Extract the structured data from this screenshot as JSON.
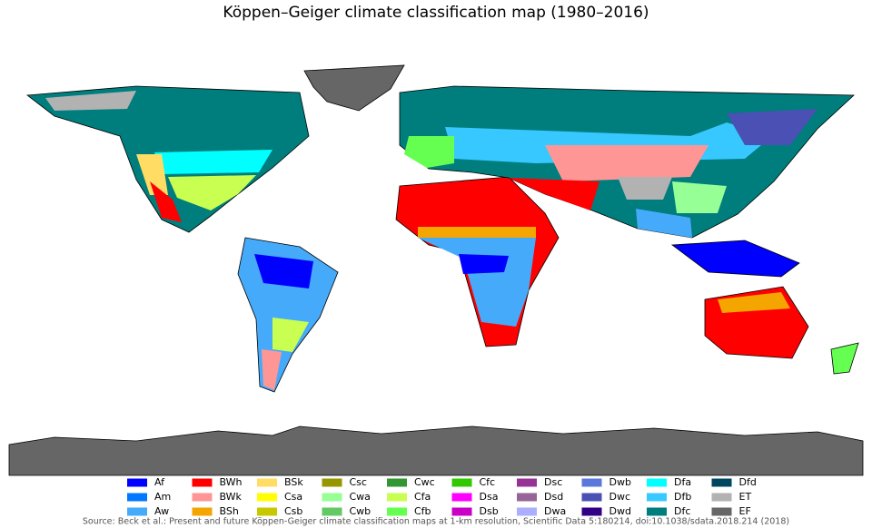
{
  "title": "Köppen–Geiger climate classification map (1980–2016)",
  "legend": [
    {
      "code": "Af",
      "color": "#0000ff"
    },
    {
      "code": "Am",
      "color": "#0078ff"
    },
    {
      "code": "Aw",
      "color": "#46aafa"
    },
    {
      "code": "BWh",
      "color": "#ff0000"
    },
    {
      "code": "BWk",
      "color": "#ff9696"
    },
    {
      "code": "BSh",
      "color": "#f5a500"
    },
    {
      "code": "BSk",
      "color": "#ffdc64"
    },
    {
      "code": "Csa",
      "color": "#ffff00"
    },
    {
      "code": "Csb",
      "color": "#c8c800"
    },
    {
      "code": "Csc",
      "color": "#969600"
    },
    {
      "code": "Cwa",
      "color": "#96ff96"
    },
    {
      "code": "Cwb",
      "color": "#64c864"
    },
    {
      "code": "Cwc",
      "color": "#329632"
    },
    {
      "code": "Cfa",
      "color": "#c8ff50"
    },
    {
      "code": "Cfb",
      "color": "#64ff50"
    },
    {
      "code": "Cfc",
      "color": "#32c800"
    },
    {
      "code": "Dsa",
      "color": "#ff00ff"
    },
    {
      "code": "Dsb",
      "color": "#c800c8"
    },
    {
      "code": "Dsc",
      "color": "#963296"
    },
    {
      "code": "Dsd",
      "color": "#966496"
    },
    {
      "code": "Dwa",
      "color": "#aaafff"
    },
    {
      "code": "Dwb",
      "color": "#5a78dc"
    },
    {
      "code": "Dwc",
      "color": "#4b50b4"
    },
    {
      "code": "Dwd",
      "color": "#320087"
    },
    {
      "code": "Dfa",
      "color": "#00ffff"
    },
    {
      "code": "Dfb",
      "color": "#37c8ff"
    },
    {
      "code": "Dfc",
      "color": "#007d7d"
    },
    {
      "code": "Dfd",
      "color": "#00465f"
    },
    {
      "code": "ET",
      "color": "#b2b2b2"
    },
    {
      "code": "EF",
      "color": "#666666"
    }
  ],
  "source": "Source: Beck et al.: Present and future Köppen-Geiger climate classification maps at 1-km resolution, Scientific Data 5:180214, doi:10.1038/sdata.2018.214 (2018)"
}
